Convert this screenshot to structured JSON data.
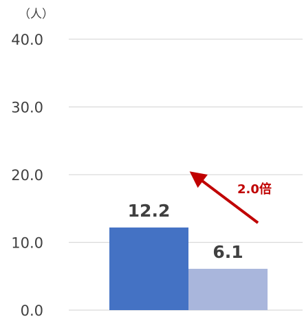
{
  "chart_data": {
    "type": "bar",
    "unit_label": "（人）",
    "categories": [
      "",
      ""
    ],
    "values": [
      12.2,
      6.1
    ],
    "value_labels": [
      "12.2",
      "6.1"
    ],
    "bar_colors": [
      "#4472C4",
      "#A9B6DC"
    ],
    "yticks": [
      "0.0",
      "10.0",
      "20.0",
      "30.0",
      "40.0"
    ],
    "ylim": [
      0,
      40
    ],
    "grid": true,
    "legend": "none",
    "annotation": {
      "text": "2.0倍",
      "color": "#C00000",
      "arrow": "up-left"
    }
  }
}
